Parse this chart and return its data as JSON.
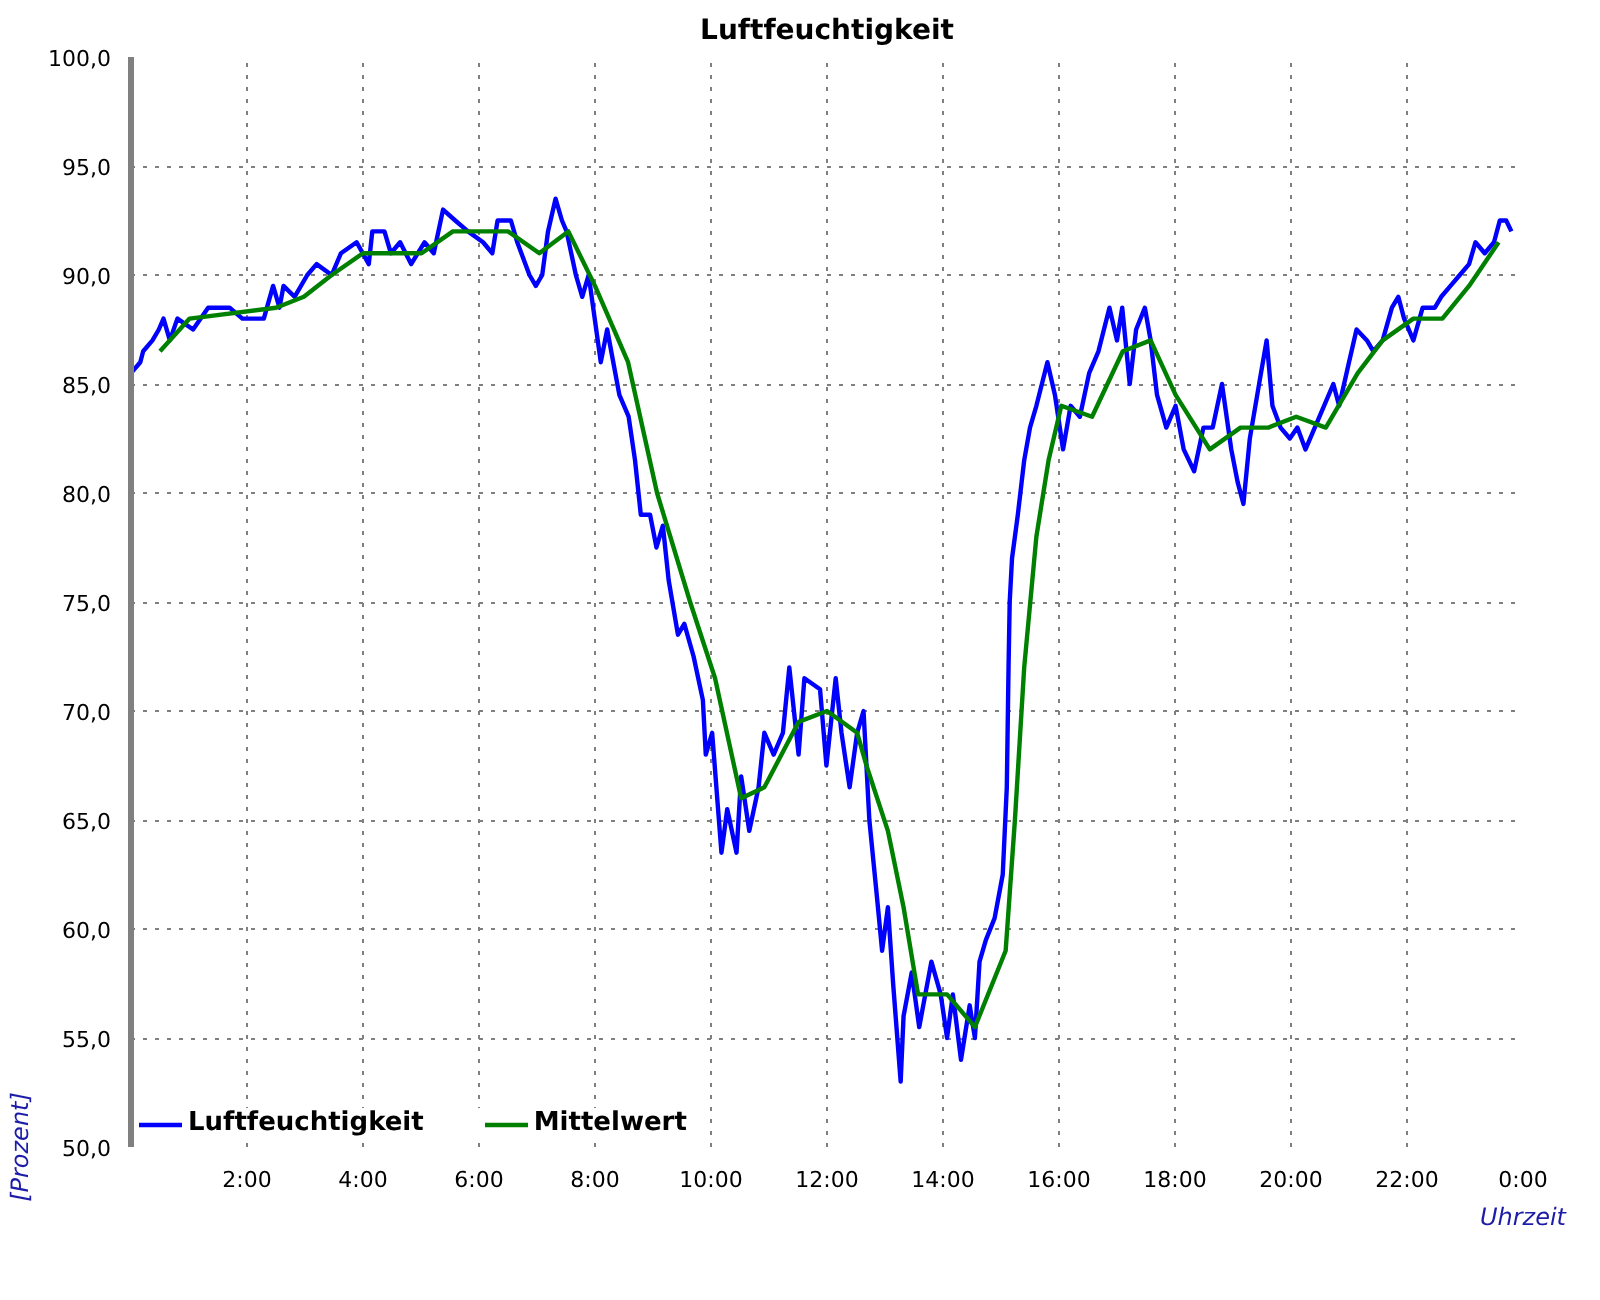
{
  "chart_data": {
    "type": "line",
    "title": "Luftfeuchtigkeit",
    "xlabel": "Uhrzeit",
    "ylabel": "[Prozent]",
    "xlim": [
      0,
      24
    ],
    "ylim": [
      50,
      100
    ],
    "xticks": [
      {
        "value": 0,
        "label": null
      },
      {
        "value": 2,
        "label": "2:00"
      },
      {
        "value": 4,
        "label": "4:00"
      },
      {
        "value": 6,
        "label": "6:00"
      },
      {
        "value": 8,
        "label": "8:00"
      },
      {
        "value": 10,
        "label": "10:00"
      },
      {
        "value": 12,
        "label": "12:00"
      },
      {
        "value": 14,
        "label": "14:00"
      },
      {
        "value": 16,
        "label": "16:00"
      },
      {
        "value": 18,
        "label": "18:00"
      },
      {
        "value": 20,
        "label": "20:00"
      },
      {
        "value": 22,
        "label": "22:00"
      },
      {
        "value": 24,
        "label": "0:00"
      }
    ],
    "yticks": [
      {
        "value": 50,
        "label": "50,0"
      },
      {
        "value": 55,
        "label": "55,0"
      },
      {
        "value": 60,
        "label": "60,0"
      },
      {
        "value": 65,
        "label": "65,0"
      },
      {
        "value": 70,
        "label": "70,0"
      },
      {
        "value": 75,
        "label": "75,0"
      },
      {
        "value": 80,
        "label": "80,0"
      },
      {
        "value": 85,
        "label": "85,0"
      },
      {
        "value": 90,
        "label": "90,0"
      },
      {
        "value": 95,
        "label": "95,0"
      },
      {
        "value": 100,
        "label": "100,0"
      }
    ],
    "grid": true,
    "legend": "bottom left",
    "series": [
      {
        "name": "Luftfeuchtigkeit",
        "color": "#0000ff",
        "x": [
          0,
          0.16,
          0.21,
          0.37,
          0.48,
          0.56,
          0.67,
          0.8,
          1.07,
          1.33,
          1.7,
          1.92,
          2.29,
          2.45,
          2.56,
          2.63,
          2.82,
          3.04,
          3.2,
          3.46,
          3.62,
          3.89,
          4.1,
          4.16,
          4.37,
          4.48,
          4.64,
          4.83,
          5.06,
          5.22,
          5.38,
          5.59,
          5.81,
          6.07,
          6.23,
          6.32,
          6.55,
          6.66,
          6.87,
          6.98,
          7.09,
          7.19,
          7.32,
          7.43,
          7.51,
          7.67,
          7.78,
          7.89,
          8.1,
          8.21,
          8.42,
          8.58,
          8.69,
          8.79,
          8.95,
          9.06,
          9.17,
          9.27,
          9.43,
          9.54,
          9.7,
          9.86,
          9.91,
          10.02,
          10.18,
          10.28,
          10.44,
          10.52,
          10.66,
          10.82,
          10.92,
          11.08,
          11.24,
          11.35,
          11.51,
          11.61,
          11.88,
          11.99,
          12.15,
          12.25,
          12.39,
          12.52,
          12.63,
          12.73,
          12.86,
          12.95,
          13.05,
          13.14,
          13.27,
          13.32,
          13.46,
          13.59,
          13.8,
          13.96,
          14.07,
          14.17,
          14.31,
          14.46,
          14.55,
          14.63,
          14.74,
          14.89,
          15.03,
          15.1,
          15.13,
          15.15,
          15.19,
          15.29,
          15.4,
          15.5,
          15.61,
          15.8,
          15.93,
          16.07,
          16.2,
          16.36,
          16.52,
          16.68,
          16.87,
          17.0,
          17.09,
          17.22,
          17.33,
          17.48,
          17.58,
          17.69,
          17.85,
          18.01,
          18.15,
          18.33,
          18.49,
          18.65,
          18.81,
          18.97,
          19.08,
          19.18,
          19.29,
          19.45,
          19.58,
          19.68,
          19.82,
          19.98,
          20.11,
          20.25,
          20.41,
          20.57,
          20.73,
          20.83,
          21.0,
          21.13,
          21.31,
          21.42,
          21.58,
          21.74,
          21.85,
          21.95,
          22.11,
          22.27,
          22.48,
          22.59,
          22.75,
          22.91,
          23.07,
          23.18,
          23.34,
          23.5,
          23.6,
          23.71,
          23.8
        ],
        "values": [
          85.5,
          86,
          86.5,
          87,
          87.5,
          88,
          87,
          88,
          87.5,
          88.5,
          88.5,
          88,
          88,
          89.5,
          88.5,
          89.5,
          89,
          90,
          90.5,
          90,
          91,
          91.5,
          90.5,
          92,
          92,
          91,
          91.5,
          90.5,
          91.5,
          91,
          93,
          92.5,
          92,
          91.5,
          91,
          92.5,
          92.5,
          91.5,
          90,
          89.5,
          90,
          92,
          93.5,
          92.5,
          92,
          90,
          89,
          90,
          86,
          87.5,
          84.5,
          83.5,
          81.5,
          79,
          79,
          77.5,
          78.5,
          76,
          73.5,
          74,
          72.5,
          70.5,
          68,
          69,
          63.5,
          65.5,
          63.5,
          67,
          64.5,
          66.5,
          69,
          68,
          69,
          72,
          68,
          71.5,
          71,
          67.5,
          71.5,
          69,
          66.5,
          69,
          70,
          65,
          61.5,
          59,
          61,
          57.5,
          53,
          56,
          58,
          55.5,
          58.5,
          57,
          55,
          57,
          54,
          56.5,
          55,
          58.5,
          59.5,
          60.5,
          62.5,
          66.5,
          72,
          75,
          77,
          79,
          81.5,
          83,
          84,
          86,
          84.5,
          82,
          84,
          83.5,
          85.5,
          86.5,
          88.5,
          87,
          88.5,
          85,
          87.5,
          88.5,
          87,
          84.5,
          83,
          84,
          82,
          81,
          83,
          83,
          85,
          82,
          80.5,
          79.5,
          82.5,
          85,
          87,
          84,
          83,
          82.5,
          83,
          82,
          83,
          84,
          85,
          84,
          86,
          87.5,
          87,
          86.5,
          87,
          88.5,
          89,
          88,
          87,
          88.5,
          88.5,
          89,
          89.5,
          90,
          90.5,
          91.5,
          91,
          91.5,
          92.5,
          92.5,
          92
        ]
      },
      {
        "name": "Mittelwert",
        "color": "#008000",
        "x": [
          0.5,
          1.01,
          2.5,
          2.98,
          3.46,
          4.0,
          4.64,
          5.01,
          5.55,
          6.5,
          7.04,
          7.54,
          8.0,
          8.57,
          9.07,
          9.64,
          10.07,
          10.52,
          10.92,
          11.51,
          12.0,
          12.52,
          12.68,
          13.05,
          13.32,
          13.57,
          14.07,
          14.55,
          15.08,
          15.24,
          15.4,
          15.61,
          15.82,
          16.04,
          16.57,
          17.1,
          17.58,
          18.01,
          18.6,
          19.13,
          19.61,
          20.09,
          20.6,
          21.15,
          21.58,
          22.11,
          22.61,
          23.07,
          23.58
        ],
        "values": [
          86.5,
          88,
          88.5,
          89,
          90,
          91,
          91,
          91,
          92,
          92,
          91,
          92,
          89.5,
          86,
          80,
          75,
          71.5,
          66,
          66.5,
          69.5,
          70,
          69,
          67.5,
          64.5,
          61,
          57,
          57,
          55.5,
          59,
          65,
          72,
          78,
          81.5,
          84,
          83.5,
          86.5,
          87,
          84.5,
          82,
          83,
          83,
          83.5,
          83,
          85.5,
          87,
          88,
          88,
          89.5,
          91.5
        ]
      }
    ]
  }
}
